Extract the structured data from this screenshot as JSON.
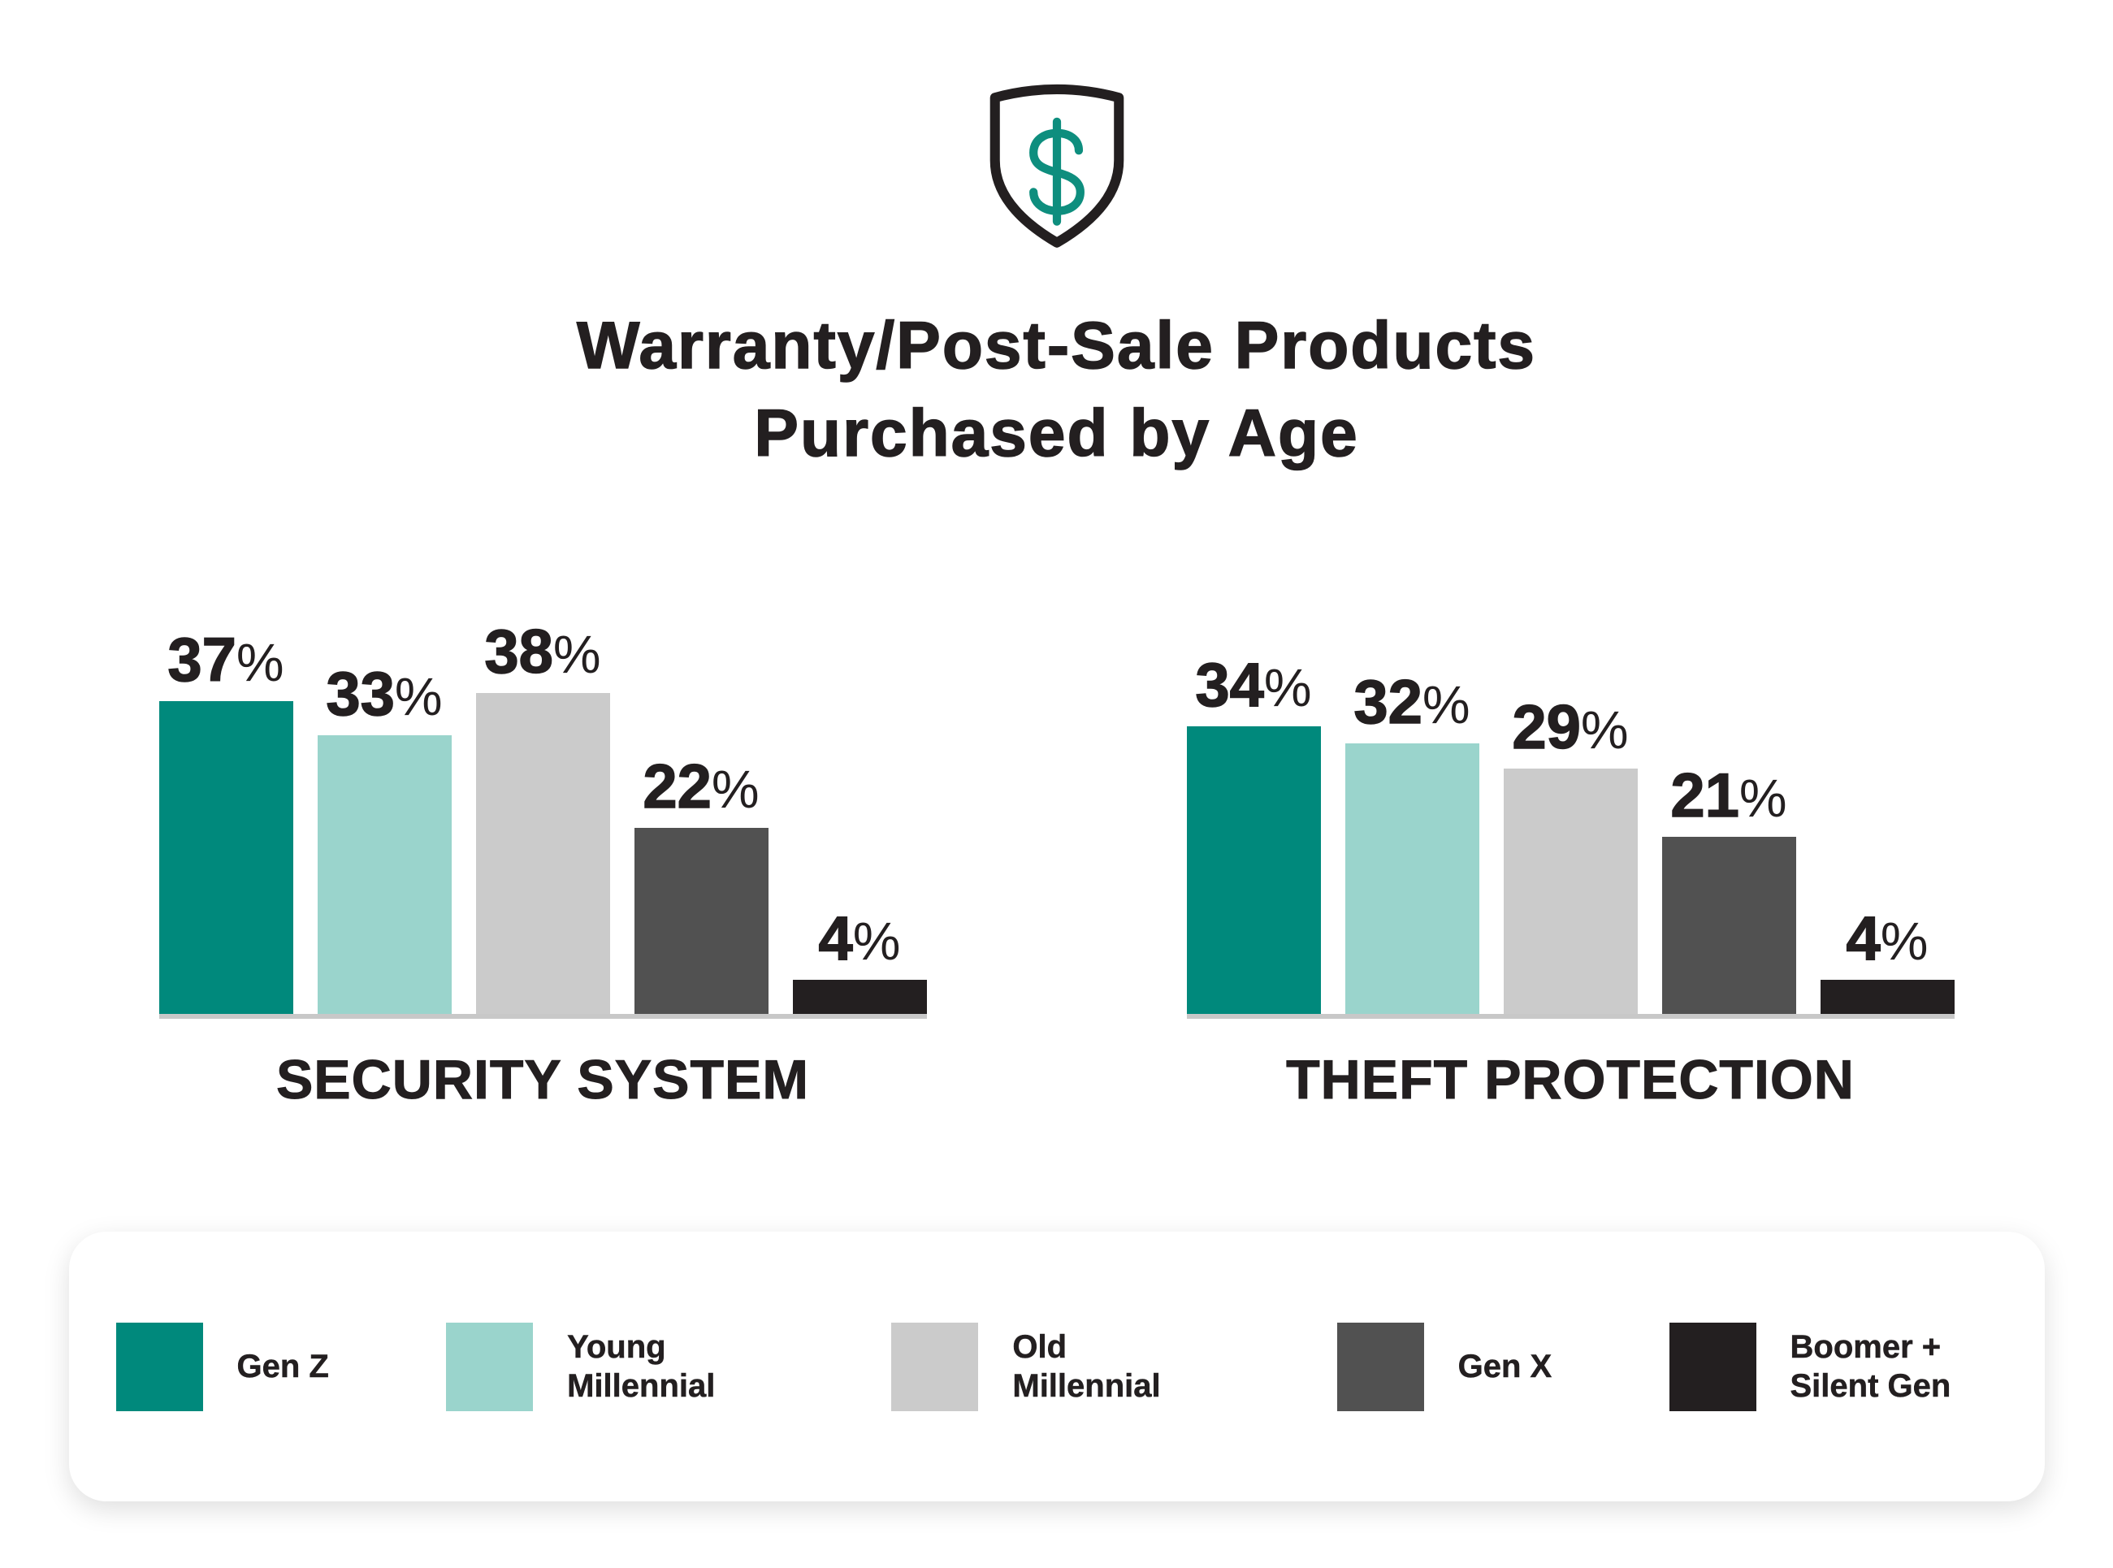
{
  "header": {
    "icon": "shield-dollar-icon",
    "title_line1": "Warranty/Post-Sale Products",
    "title_line2": "Purchased by Age"
  },
  "colors": {
    "gen_z": "#00897C",
    "young_millennial": "#9AD4CC",
    "old_millennial": "#CBCBCB",
    "gen_x": "#515151",
    "boomer_silent_gen": "#231F20",
    "text": "#231F20",
    "baseline": "#C8C8C8",
    "icon_accent": "#0E8E7E",
    "icon_outline": "#231F20",
    "card_background": "#FFFFFF",
    "page_background": "#FFFFFF"
  },
  "chart_data": [
    {
      "type": "bar",
      "title": "SECURITY SYSTEM",
      "categories": [
        "Gen Z",
        "Young Millennial",
        "Old Millennial",
        "Gen X",
        "Boomer + Silent Gen"
      ],
      "values": [
        37,
        33,
        38,
        22,
        4
      ],
      "unit": "%",
      "ylim": [
        0,
        40
      ],
      "grid": false,
      "data_labels": true,
      "legend_position": "bottom"
    },
    {
      "type": "bar",
      "title": "THEFT PROTECTION",
      "categories": [
        "Gen Z",
        "Young Millennial",
        "Old Millennial",
        "Gen X",
        "Boomer + Silent Gen"
      ],
      "values": [
        34,
        32,
        29,
        21,
        4
      ],
      "unit": "%",
      "ylim": [
        0,
        40
      ],
      "grid": false,
      "data_labels": true,
      "legend_position": "bottom"
    }
  ],
  "legend": {
    "position": "bottom",
    "items": [
      {
        "label": "Gen Z",
        "color": "#00897C"
      },
      {
        "label": "Young Millennial",
        "color": "#9AD4CC"
      },
      {
        "label": "Old Millennial",
        "color": "#CBCBCB"
      },
      {
        "label": "Gen X",
        "color": "#515151"
      },
      {
        "label": "Boomer + Silent Gen",
        "color": "#231F20"
      }
    ]
  }
}
